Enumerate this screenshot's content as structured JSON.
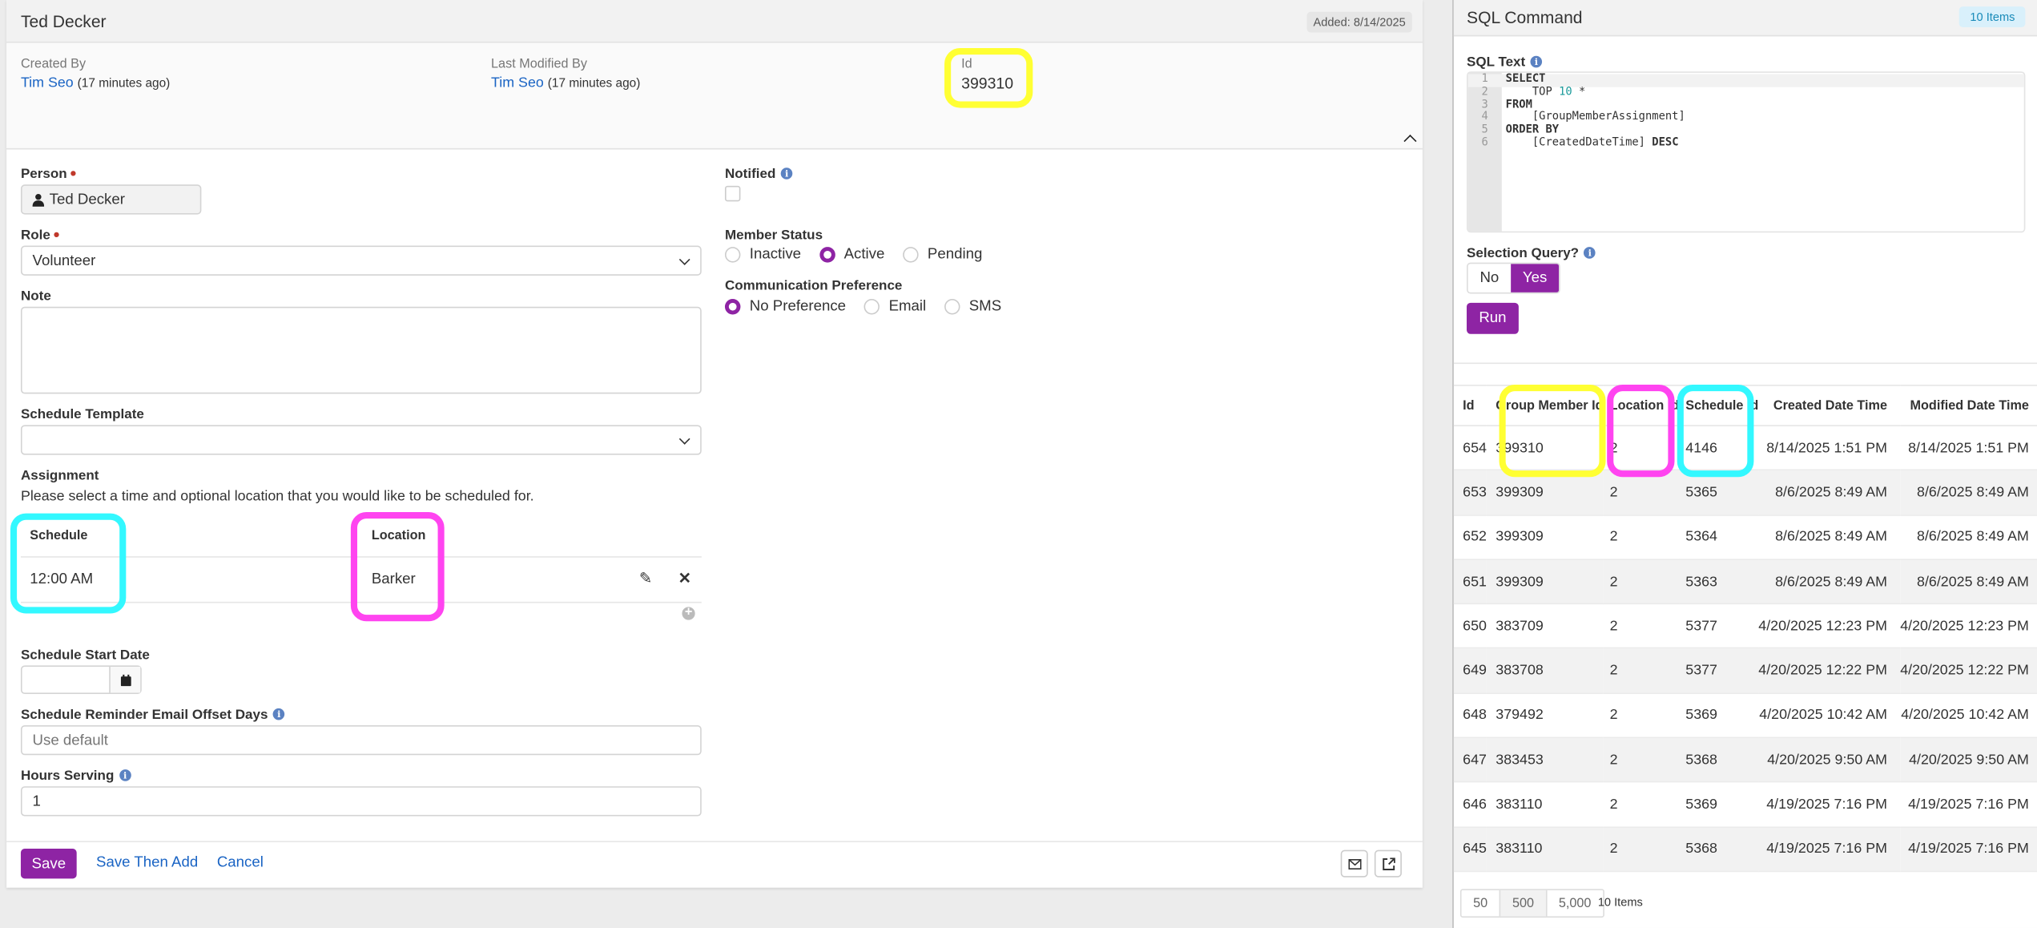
{
  "form": {
    "title": "Ted Decker",
    "added_badge": "Added: 8/14/2025",
    "created_by_label": "Created By",
    "created_by_name": "Tim Seo",
    "created_by_ago": "(17 minutes ago)",
    "modified_by_label": "Last Modified By",
    "modified_by_name": "Tim Seo",
    "modified_by_ago": "(17 minutes ago)",
    "id_label": "Id",
    "id_value": "399310",
    "person_label": "Person",
    "person_value": "Ted Decker",
    "role_label": "Role",
    "role_value": "Volunteer",
    "note_label": "Note",
    "schedule_template_label": "Schedule Template",
    "schedule_template_value": "",
    "assignment_label": "Assignment",
    "assignment_desc": "Please select a time and optional location that you would like to be scheduled for.",
    "assignment_table": {
      "headers": [
        "Schedule",
        "Location"
      ],
      "rows": [
        {
          "schedule": "12:00 AM",
          "location": "Barker"
        }
      ]
    },
    "schedule_start_label": "Schedule Start Date",
    "schedule_start_value": "",
    "reminder_label": "Schedule Reminder Email Offset Days",
    "reminder_placeholder": "Use default",
    "hours_label": "Hours Serving",
    "hours_value": "1",
    "notified_label": "Notified",
    "notified_checked": false,
    "member_status_label": "Member Status",
    "member_status_options": [
      "Inactive",
      "Active",
      "Pending"
    ],
    "member_status_selected": "Active",
    "comm_pref_label": "Communication Preference",
    "comm_pref_options": [
      "No Preference",
      "Email",
      "SMS"
    ],
    "comm_pref_selected": "No Preference",
    "save_label": "Save",
    "save_then_add_label": "Save Then Add",
    "cancel_label": "Cancel"
  },
  "sql": {
    "title": "SQL Command",
    "items_badge": "10 Items",
    "sql_text_label": "SQL Text",
    "code_lines": [
      {
        "n": "1",
        "text": "SELECT"
      },
      {
        "n": "2",
        "text": "    TOP 10 *"
      },
      {
        "n": "3",
        "text": "FROM"
      },
      {
        "n": "4",
        "text": "    [GroupMemberAssignment]"
      },
      {
        "n": "5",
        "text": "ORDER BY"
      },
      {
        "n": "6",
        "text": "    [CreatedDateTime] DESC"
      }
    ],
    "selection_query_label": "Selection Query?",
    "toggle_no": "No",
    "toggle_yes": "Yes",
    "toggle_selected": "Yes",
    "run_label": "Run",
    "columns": [
      "Id",
      "Group Member Id",
      "Location Id",
      "Schedule Id",
      "Created Date Time",
      "Modified Date Time"
    ],
    "rows": [
      [
        "654",
        "399310",
        "2",
        "4146",
        "8/14/2025 1:51 PM",
        "8/14/2025 1:51 PM"
      ],
      [
        "653",
        "399309",
        "2",
        "5365",
        "8/6/2025 8:49 AM",
        "8/6/2025 8:49 AM"
      ],
      [
        "652",
        "399309",
        "2",
        "5364",
        "8/6/2025 8:49 AM",
        "8/6/2025 8:49 AM"
      ],
      [
        "651",
        "399309",
        "2",
        "5363",
        "8/6/2025 8:49 AM",
        "8/6/2025 8:49 AM"
      ],
      [
        "650",
        "383709",
        "2",
        "5377",
        "4/20/2025 12:23 PM",
        "4/20/2025 12:23 PM"
      ],
      [
        "649",
        "383708",
        "2",
        "5377",
        "4/20/2025 12:22 PM",
        "4/20/2025 12:22 PM"
      ],
      [
        "648",
        "379492",
        "2",
        "5369",
        "4/20/2025 10:42 AM",
        "4/20/2025 10:42 AM"
      ],
      [
        "647",
        "383453",
        "2",
        "5368",
        "4/20/2025 9:50 AM",
        "4/20/2025 9:50 AM"
      ],
      [
        "646",
        "383110",
        "2",
        "5369",
        "4/19/2025 7:16 PM",
        "4/19/2025 7:16 PM"
      ],
      [
        "645",
        "383110",
        "2",
        "5368",
        "4/19/2025 7:16 PM",
        "4/19/2025 7:16 PM"
      ]
    ],
    "page_sizes": [
      "50",
      "500",
      "5,000"
    ],
    "page_size_selected": "500",
    "footer_count": "10 Items"
  },
  "colors": {
    "accent": "#8e24a4",
    "link": "#1a64c4",
    "highlight_yellow": "#ffff33",
    "highlight_magenta": "#ff44f0",
    "highlight_cyan": "#33f8ff"
  }
}
